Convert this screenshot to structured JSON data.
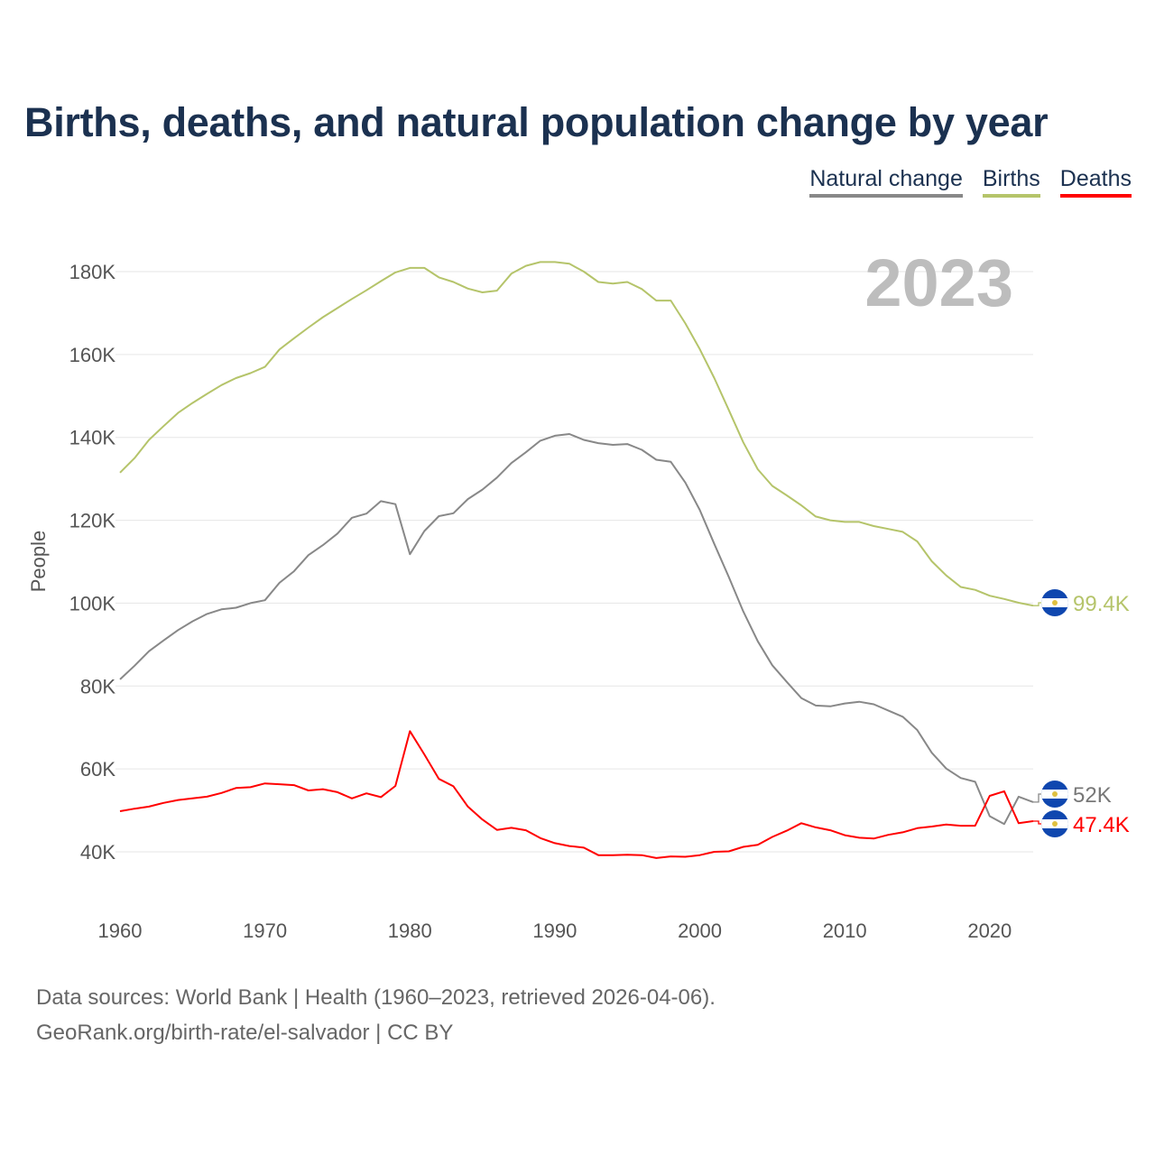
{
  "title": "Births, deaths, and natural population change by year",
  "legend": [
    {
      "label": "Natural change",
      "color": "#888888"
    },
    {
      "label": "Births",
      "color": "#b5c46a"
    },
    {
      "label": "Deaths",
      "color": "#ff0000"
    }
  ],
  "year_watermark": "2023",
  "footer": {
    "line1": "Data sources: World Bank | Health (1960–2023, retrieved 2026-04-06).",
    "line2": "GeoRank.org/birth-rate/el-salvador | CC BY"
  },
  "chart_data": {
    "type": "line",
    "title": "Births, deaths, and natural population change by year",
    "xlabel": "",
    "ylabel": "People",
    "xlim": [
      1960,
      2023
    ],
    "ylim": [
      40000,
      180000
    ],
    "x_ticks": [
      1960,
      1970,
      1980,
      1990,
      2000,
      2010,
      2020
    ],
    "x_tick_labels": [
      "1960",
      "1970",
      "1980",
      "1990",
      "2000",
      "2010",
      "2020"
    ],
    "y_ticks": [
      40000,
      60000,
      80000,
      100000,
      120000,
      140000,
      160000,
      180000
    ],
    "y_tick_labels": [
      "40K",
      "60K",
      "80K",
      "100K",
      "120K",
      "140K",
      "160K",
      "180K"
    ],
    "grid": true,
    "legend_position": "top-right",
    "x_start": 1960,
    "series": [
      {
        "name": "Natural change",
        "color": "#888888",
        "end_label": "52K",
        "values": [
          81.6,
          84.9,
          88.4,
          91,
          93.5,
          95.6,
          97.4,
          98.5,
          98.9,
          100,
          100.7,
          104.9,
          107.7,
          111.6,
          114,
          116.8,
          120.6,
          121.6,
          124.6,
          123.9,
          111.8,
          117.4,
          121,
          121.7,
          125.1,
          127.4,
          130.3,
          133.8,
          136.4,
          139.2,
          140.4,
          140.8,
          139.4,
          138.6,
          138.2,
          138.4,
          137,
          134.6,
          134.1,
          129.1,
          122.5,
          114.3,
          106.3,
          98,
          90.8,
          85,
          81,
          77.1,
          75.3,
          75.1,
          75.8,
          76.2,
          75.6,
          74.1,
          72.6,
          69.4,
          63.9,
          60.1,
          57.8,
          56.9,
          48.6,
          46.7,
          53.3,
          52
        ]
      },
      {
        "name": "Births",
        "color": "#b5c46a",
        "end_label": "99.4K",
        "values": [
          131.5,
          135,
          139.4,
          142.7,
          145.9,
          148.3,
          150.5,
          152.6,
          154.3,
          155.5,
          157,
          161.2,
          163.9,
          166.5,
          169,
          171.2,
          173.4,
          175.5,
          177.7,
          179.8,
          180.9,
          180.9,
          178.6,
          177.5,
          175.9,
          175,
          175.4,
          179.5,
          181.4,
          182.3,
          182.3,
          181.9,
          180,
          177.5,
          177.1,
          177.5,
          175.8,
          173,
          173,
          167.5,
          161.3,
          154.3,
          146.6,
          138.8,
          132.3,
          128.3,
          126,
          123.6,
          120.9,
          120,
          119.6,
          119.6,
          118.6,
          117.9,
          117.2,
          114.9,
          110.1,
          106.7,
          103.9,
          103.2,
          101.8,
          101,
          100.1,
          99.4
        ]
      },
      {
        "name": "Deaths",
        "color": "#ff0000",
        "end_label": "47.4K",
        "values": [
          49.8,
          50.4,
          50.9,
          51.8,
          52.5,
          52.9,
          53.3,
          54.2,
          55.4,
          55.6,
          56.5,
          56.3,
          56.1,
          54.8,
          55.1,
          54.4,
          52.9,
          54.1,
          53.2,
          55.9,
          69.1,
          63.5,
          57.6,
          55.8,
          50.9,
          47.8,
          45.3,
          45.8,
          45.2,
          43.3,
          42.1,
          41.4,
          41,
          39.2,
          39.2,
          39.3,
          39.2,
          38.5,
          38.9,
          38.8,
          39.2,
          40,
          40.1,
          41.2,
          41.7,
          43.6,
          45.1,
          46.9,
          45.9,
          45.2,
          44,
          43.4,
          43.2,
          44.1,
          44.7,
          45.7,
          46.1,
          46.6,
          46.3,
          46.3,
          53.5,
          54.6,
          46.9,
          47.4
        ]
      }
    ],
    "value_unit": "thousands of people"
  }
}
